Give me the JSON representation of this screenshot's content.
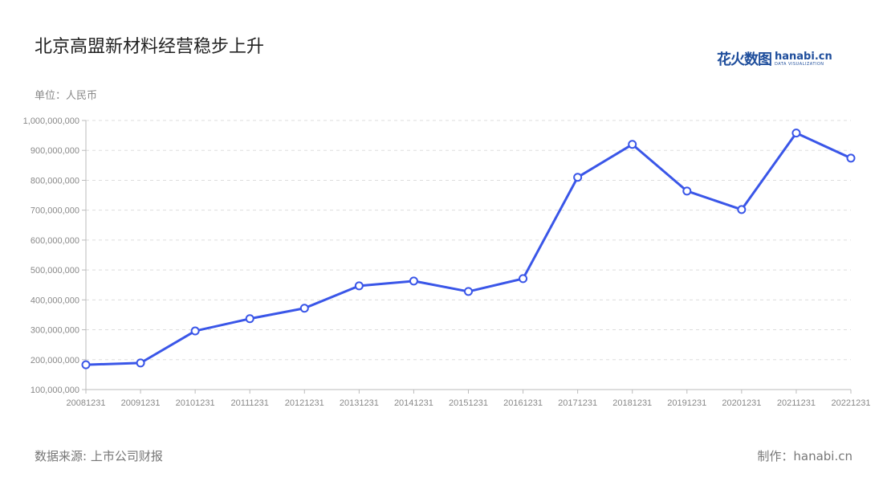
{
  "title": "北京高盟新材料经营稳步上升",
  "ylabel": "单位：人民币",
  "source": "数据来源: 上市公司财报",
  "credit": "制作：hanabi.cn",
  "logo": {
    "cn": "花火数图",
    "en": "hanabi.cn",
    "sub": "DATA VISUALIZATION"
  },
  "watermark": "花火数图 hanabi.cn",
  "colors": {
    "line": "#3a56e8",
    "grid": "#dddddd"
  },
  "chart_data": {
    "type": "line",
    "title": "北京高盟新材料经营稳步上升",
    "ylabel": "单位：人民币",
    "xlabel": "",
    "ylim": [
      100000000,
      1000000000
    ],
    "yticks": [
      100000000,
      200000000,
      300000000,
      400000000,
      500000000,
      600000000,
      700000000,
      800000000,
      900000000,
      1000000000
    ],
    "ytick_labels": [
      "100,000,000",
      "200,000,000",
      "300,000,000",
      "400,000,000",
      "500,000,000",
      "600,000,000",
      "700,000,000",
      "800,000,000",
      "900,000,000",
      "1,000,000,000"
    ],
    "grid": true,
    "categories": [
      "20081231",
      "20091231",
      "20101231",
      "20111231",
      "20121231",
      "20131231",
      "20141231",
      "20151231",
      "20161231",
      "20171231",
      "20181231",
      "20191231",
      "20201231",
      "20211231",
      "20221231"
    ],
    "values": [
      183000000,
      189000000,
      296000000,
      337000000,
      372000000,
      447000000,
      463000000,
      428000000,
      471000000,
      810000000,
      920000000,
      764000000,
      702000000,
      958000000,
      874000000
    ]
  }
}
